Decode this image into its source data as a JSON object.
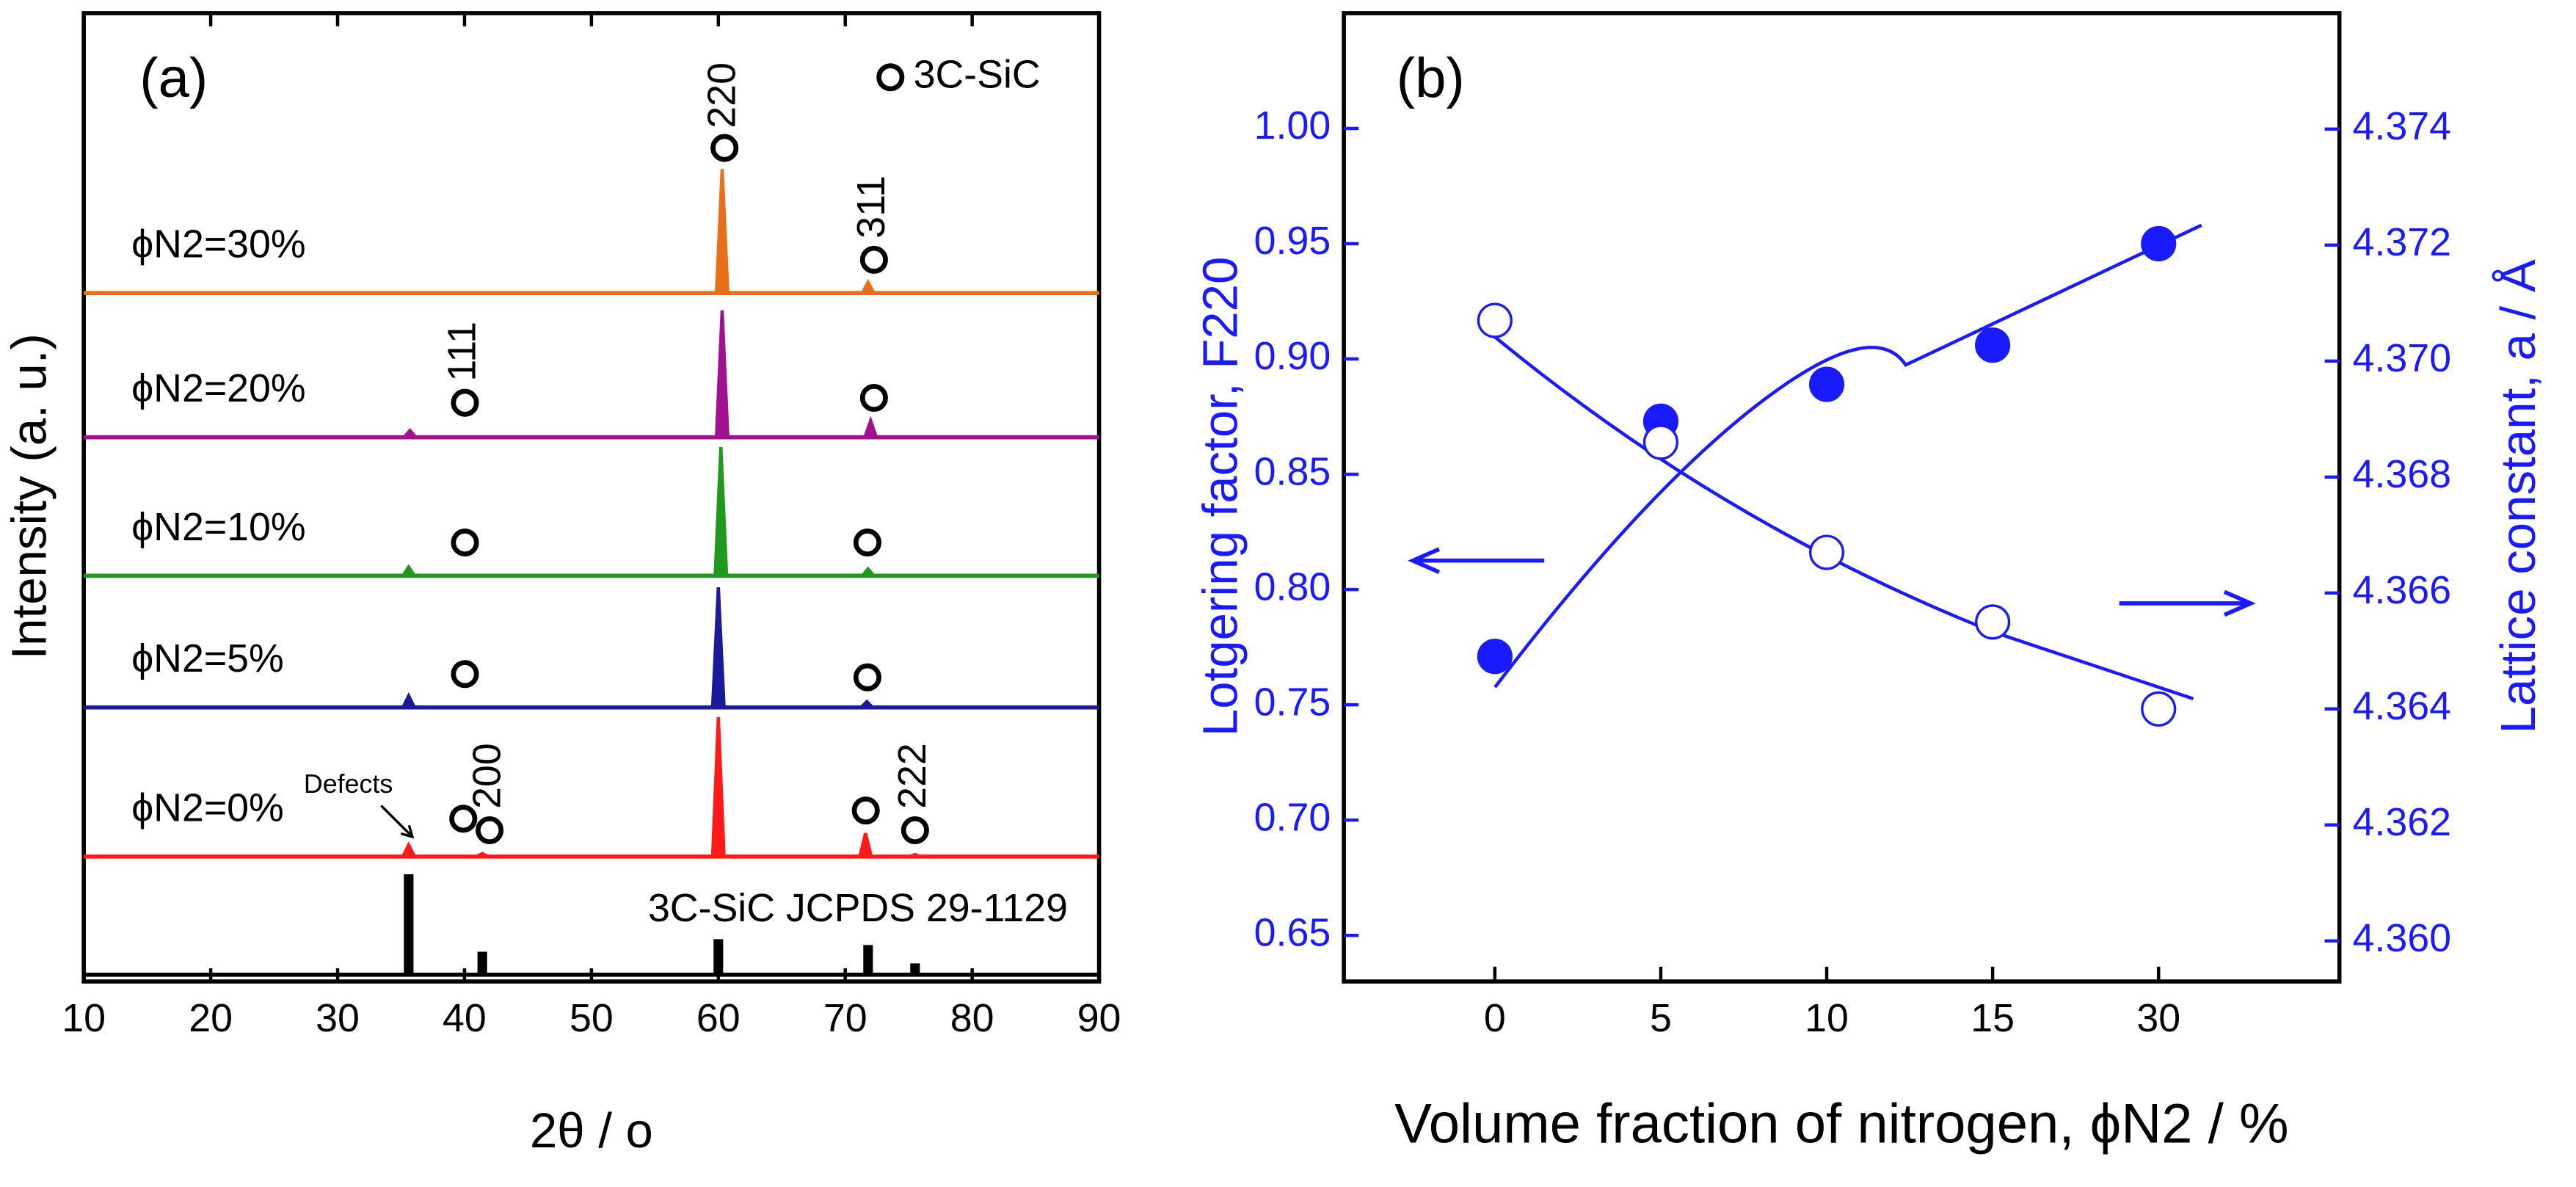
{
  "chart_data": [
    {
      "type": "spectrum",
      "title": "(a)",
      "xlabel": "2θ / o",
      "ylabel": "Intensity (a. u.)",
      "legend_label": "3C-SiC",
      "annotations": [
        "220",
        "311",
        "111",
        "200",
        "222",
        "Defects"
      ],
      "xlim": [
        10,
        90
      ],
      "xticks": [
        10,
        20,
        30,
        40,
        50,
        60,
        70,
        80,
        90
      ],
      "ylim": [
        0,
        100
      ],
      "series": [
        {
          "name": "ϕN2=30%",
          "color": "#e8701a",
          "baseline": 71.1,
          "x": [
            60.3,
            71.8
          ],
          "values": [
            83.9,
            72.2
          ]
        },
        {
          "name": "ϕN2=20%",
          "color": "#a0108f",
          "baseline": 56.2,
          "x": [
            35.7,
            60.3,
            72.0
          ],
          "values": [
            56.9,
            69.3,
            57.9
          ]
        },
        {
          "name": "ϕN2=10%",
          "color": "#1f9a1f",
          "baseline": 41.9,
          "x": [
            35.6,
            60.2,
            71.8
          ],
          "values": [
            42.8,
            55.2,
            42.6
          ]
        },
        {
          "name": "ϕN2=5%",
          "color": "#1a1a9a",
          "baseline": 28.3,
          "x": [
            35.6,
            60.0,
            71.7
          ],
          "values": [
            29.5,
            40.7,
            28.9
          ]
        },
        {
          "name": "ϕN2=0%",
          "color": "#ff1a1a",
          "baseline": 12.9,
          "x": [
            35.6,
            41.4,
            60.0,
            71.6,
            75.5
          ],
          "values": [
            14.1,
            13.2,
            27.3,
            15.3,
            13.1
          ]
        },
        {
          "name": "3C-SiC JCPDS 29-1129",
          "color": "#000000",
          "baseline": 0.7,
          "x": [
            35.6,
            41.4,
            60.0,
            71.8,
            75.5
          ],
          "values": [
            10.9,
            2.9,
            4.2,
            3.6,
            1.7
          ]
        }
      ]
    },
    {
      "type": "scatter",
      "title": "(b)",
      "xlabel": "Volume fraction of nitrogen, ϕN2 / %",
      "ylabel": "Lotgering factor, F220",
      "y2label": "Lattice constant, a / Å",
      "categories": [
        "0",
        "5",
        "10",
        "15",
        "30"
      ],
      "ylim": [
        0.63,
        1.05
      ],
      "yticks": [
        0.65,
        {
          "value": 0.7,
          "label": "0.70"
        },
        0.75,
        {
          "value": 0.8,
          "label": "0.80"
        },
        0.85,
        {
          "value": 0.9,
          "label": "0.90"
        },
        0.95,
        {
          "value": 1.0,
          "label": "1.00"
        }
      ],
      "y2lim": [
        4.3593,
        4.376
      ],
      "y2ticks": [
        {
          "value": 4.36,
          "label": "4.360"
        },
        4.362,
        4.364,
        4.366,
        4.368,
        {
          "value": 4.37,
          "label": "4.370"
        },
        4.372,
        4.374
      ],
      "color": "#1a1aff",
      "series": [
        {
          "name": "F220",
          "fill": true,
          "values": [
            0.771,
            0.873,
            0.889,
            0.906,
            0.95
          ]
        },
        {
          "name": "a",
          "fill": false,
          "axis": "y2",
          "values": [
            4.3707,
            4.3686,
            4.3667,
            4.3655,
            4.364
          ]
        }
      ]
    }
  ]
}
